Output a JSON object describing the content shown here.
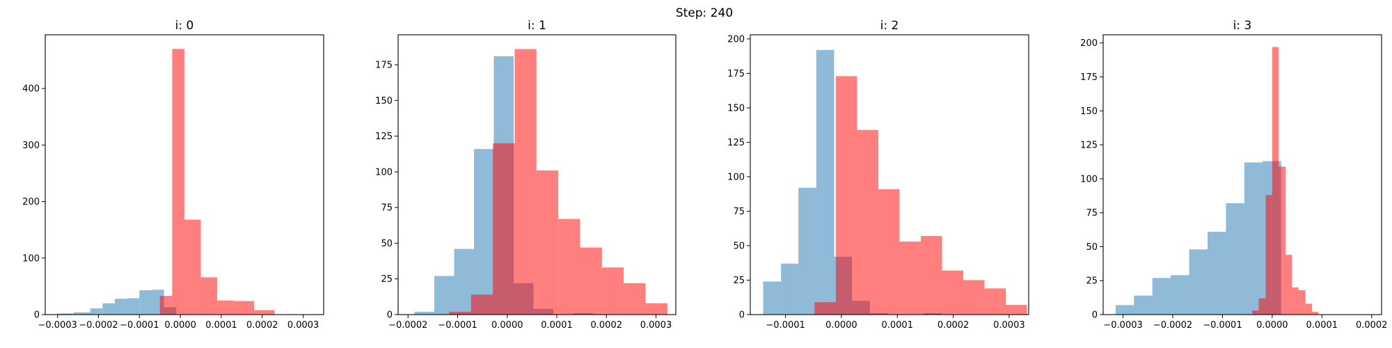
{
  "suptitle": "Step: 240",
  "colors": {
    "series_a": "#1f77b4",
    "series_b": "#ff0000"
  },
  "chart_data": [
    {
      "type": "histogram",
      "title": "i: 0",
      "xlim": [
        -0.00033,
        0.00035
      ],
      "ylim": [
        0,
        495
      ],
      "xticks": [
        -0.0003,
        -0.0002,
        -0.0001,
        0.0,
        0.0001,
        0.0002,
        0.0003
      ],
      "xtick_labels": [
        "−0.0003",
        "−0.0002",
        "−0.0001",
        "0.0000",
        "0.0001",
        "0.0002",
        "0.0003"
      ],
      "yticks": [
        0,
        100,
        200,
        300,
        400
      ],
      "ytick_labels": [
        "0",
        "100",
        "200",
        "300",
        "400"
      ],
      "series": [
        {
          "color": "#1f77b4",
          "alpha": 0.5,
          "edges": [
            -0.0003,
            -0.00026,
            -0.00022,
            -0.00019,
            -0.00016,
            -0.00013,
            -0.0001,
            -7e-05,
            -4e-05,
            -1e-05
          ],
          "counts": [
            2,
            4,
            11,
            20,
            28,
            29,
            43,
            44,
            13
          ]
        },
        {
          "color": "#ff0000",
          "alpha": 0.5,
          "edges": [
            -5e-05,
            -2e-05,
            1e-05,
            5e-05,
            9e-05,
            0.00013,
            0.00018,
            0.00023,
            0.00028,
            0.00032
          ],
          "counts": [
            33,
            470,
            168,
            66,
            25,
            24,
            8,
            0,
            0
          ]
        }
      ]
    },
    {
      "type": "histogram",
      "title": "i: 1",
      "xlim": [
        -0.00022,
        0.00034
      ],
      "ylim": [
        0,
        196
      ],
      "xticks": [
        -0.0002,
        -0.0001,
        0.0,
        0.0001,
        0.0002,
        0.0003
      ],
      "xtick_labels": [
        "−0.0002",
        "−0.0001",
        "0.0000",
        "0.0001",
        "0.0002",
        "0.0003"
      ],
      "yticks": [
        0,
        25,
        50,
        75,
        100,
        125,
        150,
        175
      ],
      "ytick_labels": [
        "0",
        "25",
        "50",
        "75",
        "100",
        "125",
        "150",
        "175"
      ],
      "series": [
        {
          "color": "#1f77b4",
          "alpha": 0.5,
          "edges": [
            -0.000187,
            -0.000147,
            -0.000107,
            -6.7e-05,
            -2.7e-05,
            1.3e-05,
            5.3e-05,
            9.3e-05,
            0.000133,
            0.000173,
            0.000213
          ],
          "counts": [
            2,
            27,
            46,
            116,
            181,
            22,
            4,
            0,
            1,
            0
          ]
        },
        {
          "color": "#ff0000",
          "alpha": 0.5,
          "edges": [
            -0.000117,
            -7.3e-05,
            -2.9e-05,
            1.5e-05,
            5.9e-05,
            0.000103,
            0.000147,
            0.000191,
            0.000235,
            0.000279,
            0.000323
          ],
          "counts": [
            2,
            14,
            120,
            186,
            101,
            67,
            47,
            33,
            22,
            8
          ]
        }
      ]
    },
    {
      "type": "histogram",
      "title": "i: 2",
      "xlim": [
        -0.000163,
        0.000335
      ],
      "ylim": [
        0,
        203
      ],
      "xticks": [
        -0.0001,
        0.0,
        0.0001,
        0.0002,
        0.0003
      ],
      "xtick_labels": [
        "−0.0001",
        "0.0000",
        "0.0001",
        "0.0002",
        "0.0003"
      ],
      "yticks": [
        0,
        25,
        50,
        75,
        100,
        125,
        150,
        175,
        200
      ],
      "ytick_labels": [
        "0",
        "25",
        "50",
        "75",
        "100",
        "125",
        "150",
        "175",
        "200"
      ],
      "series": [
        {
          "color": "#1f77b4",
          "alpha": 0.5,
          "edges": [
            -0.00014,
            -0.000108,
            -7.7e-05,
            -4.5e-05,
            -1.3e-05,
            1.9e-05,
            5.1e-05,
            8.3e-05,
            0.000115,
            0.000147,
            0.000179
          ],
          "counts": [
            24,
            37,
            92,
            192,
            42,
            10,
            1,
            0,
            0,
            1
          ]
        },
        {
          "color": "#ff0000",
          "alpha": 0.5,
          "edges": [
            -4.8e-05,
            -1e-05,
            2.8e-05,
            6.6e-05,
            0.000104,
            0.000142,
            0.00018,
            0.000218,
            0.000256,
            0.000294,
            0.000332
          ],
          "counts": [
            9,
            173,
            134,
            91,
            53,
            57,
            32,
            25,
            19,
            7
          ]
        }
      ]
    },
    {
      "type": "histogram",
      "title": "i: 3",
      "xlim": [
        -0.00034,
        0.00022
      ],
      "ylim": [
        0,
        206
      ],
      "xticks": [
        -0.0003,
        -0.0002,
        -0.0001,
        0.0,
        0.0001,
        0.0002
      ],
      "xtick_labels": [
        "−0.0003",
        "−0.0002",
        "−0.0001",
        "0.0000",
        "0.0001",
        "0.0002"
      ],
      "yticks": [
        0,
        25,
        50,
        75,
        100,
        125,
        150,
        175,
        200
      ],
      "ytick_labels": [
        "0",
        "25",
        "50",
        "75",
        "100",
        "125",
        "150",
        "175",
        "200"
      ],
      "series": [
        {
          "color": "#1f77b4",
          "alpha": 0.5,
          "edges": [
            -0.000315,
            -0.000278,
            -0.000241,
            -0.000204,
            -0.000167,
            -0.00013,
            -9.3e-05,
            -5.6e-05,
            -1.9e-05,
            1.8e-05
          ],
          "counts": [
            7,
            14,
            27,
            29,
            48,
            61,
            82,
            112,
            113
          ]
        },
        {
          "color": "#ff0000",
          "alpha": 0.5,
          "edges": [
            -4e-05,
            -2.7e-05,
            -1.3e-05,
            0.0,
            1.3e-05,
            2.7e-05,
            4e-05,
            5.3e-05,
            6.7e-05,
            8e-05,
            9.3e-05,
            0.000107,
            0.00012,
            0.000133,
            0.000147
          ],
          "counts": [
            3,
            12,
            88,
            197,
            109,
            44,
            20,
            18,
            8,
            2,
            0,
            0,
            0,
            0
          ]
        }
      ]
    }
  ]
}
